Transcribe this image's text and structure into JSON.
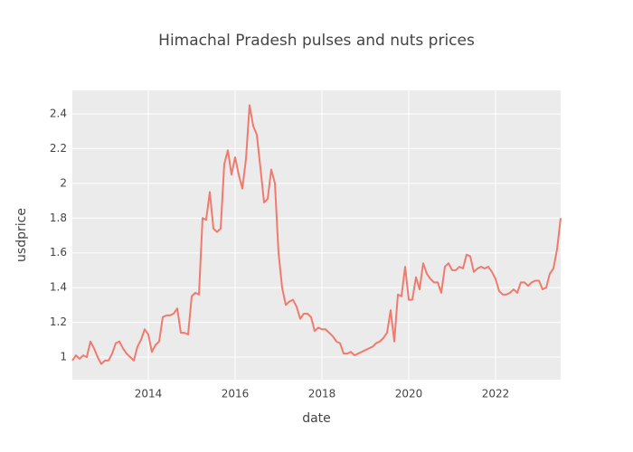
{
  "chart_data": {
    "type": "line",
    "title": "Himachal Pradesh pulses and nuts prices",
    "x_label": "date",
    "y_label": "usdprice",
    "x": [
      2012.25,
      2012.333,
      2012.417,
      2012.5,
      2012.583,
      2012.667,
      2012.75,
      2012.833,
      2012.917,
      2013,
      2013.083,
      2013.167,
      2013.25,
      2013.333,
      2013.417,
      2013.5,
      2013.583,
      2013.667,
      2013.75,
      2013.833,
      2013.917,
      2014,
      2014.083,
      2014.167,
      2014.25,
      2014.333,
      2014.417,
      2014.5,
      2014.583,
      2014.667,
      2014.75,
      2014.833,
      2014.917,
      2015,
      2015.083,
      2015.167,
      2015.25,
      2015.333,
      2015.417,
      2015.5,
      2015.583,
      2015.667,
      2015.75,
      2015.833,
      2015.917,
      2016,
      2016.083,
      2016.167,
      2016.25,
      2016.333,
      2016.417,
      2016.5,
      2016.583,
      2016.667,
      2016.75,
      2016.833,
      2016.917,
      2017,
      2017.083,
      2017.167,
      2017.25,
      2017.333,
      2017.417,
      2017.5,
      2017.583,
      2017.667,
      2017.75,
      2017.833,
      2017.917,
      2018,
      2018.083,
      2018.167,
      2018.25,
      2018.333,
      2018.417,
      2018.5,
      2018.583,
      2018.667,
      2018.75,
      2018.833,
      2018.917,
      2019,
      2019.083,
      2019.167,
      2019.25,
      2019.333,
      2019.417,
      2019.5,
      2019.583,
      2019.667,
      2019.75,
      2019.833,
      2019.917,
      2020,
      2020.083,
      2020.167,
      2020.25,
      2020.333,
      2020.417,
      2020.5,
      2020.583,
      2020.667,
      2020.75,
      2020.833,
      2020.917,
      2021,
      2021.083,
      2021.167,
      2021.25,
      2021.333,
      2021.417,
      2021.5,
      2021.583,
      2021.667,
      2021.75,
      2021.833,
      2021.917,
      2022,
      2022.083,
      2022.167,
      2022.25,
      2022.333,
      2022.417,
      2022.5,
      2022.583,
      2022.667,
      2022.75,
      2022.833,
      2022.917,
      2023,
      2023.083,
      2023.167,
      2023.25,
      2023.333,
      2023.417,
      2023.5
    ],
    "series": [
      {
        "color": "#ef7b6f",
        "values": [
          0.98,
          1.01,
          0.99,
          1.01,
          1.0,
          1.09,
          1.05,
          1.0,
          0.96,
          0.98,
          0.98,
          1.02,
          1.08,
          1.09,
          1.05,
          1.02,
          1.0,
          0.98,
          1.06,
          1.1,
          1.16,
          1.13,
          1.03,
          1.07,
          1.09,
          1.23,
          1.24,
          1.24,
          1.25,
          1.28,
          1.14,
          1.14,
          1.13,
          1.35,
          1.37,
          1.36,
          1.8,
          1.79,
          1.95,
          1.74,
          1.72,
          1.74,
          2.11,
          2.19,
          2.05,
          2.15,
          2.05,
          1.97,
          2.14,
          2.45,
          2.33,
          2.28,
          2.09,
          1.89,
          1.91,
          2.08,
          2.0,
          1.6,
          1.4,
          1.3,
          1.32,
          1.33,
          1.29,
          1.22,
          1.25,
          1.25,
          1.23,
          1.15,
          1.17,
          1.16,
          1.16,
          1.14,
          1.12,
          1.09,
          1.08,
          1.02,
          1.02,
          1.03,
          1.01,
          1.02,
          1.03,
          1.04,
          1.05,
          1.06,
          1.08,
          1.09,
          1.11,
          1.14,
          1.27,
          1.09,
          1.36,
          1.35,
          1.52,
          1.33,
          1.33,
          1.46,
          1.39,
          1.54,
          1.48,
          1.45,
          1.43,
          1.43,
          1.37,
          1.52,
          1.54,
          1.5,
          1.5,
          1.52,
          1.51,
          1.59,
          1.58,
          1.49,
          1.51,
          1.52,
          1.51,
          1.52,
          1.49,
          1.45,
          1.38,
          1.36,
          1.36,
          1.37,
          1.39,
          1.37,
          1.43,
          1.43,
          1.41,
          1.43,
          1.44,
          1.44,
          1.39,
          1.4,
          1.48,
          1.51,
          1.62,
          1.8
        ]
      }
    ],
    "xlim": [
      2012.25,
      2023.5
    ],
    "xticks": [
      2014,
      2016,
      2018,
      2020,
      2022
    ],
    "ylim": [
      0.87,
      2.535
    ],
    "yticks": [
      1,
      1.2,
      1.4,
      1.6,
      1.8,
      2,
      2.2,
      2.4
    ],
    "grid": true
  }
}
